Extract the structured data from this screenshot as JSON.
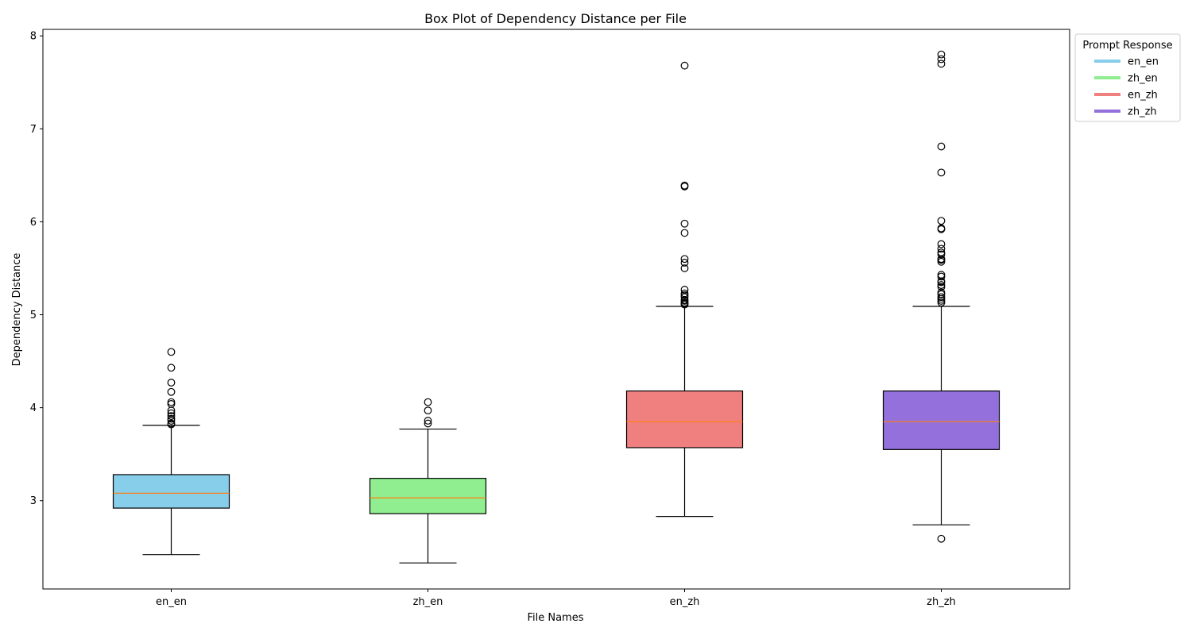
{
  "chart_data": {
    "type": "box",
    "title": "Box Plot of Dependency Distance per File",
    "xlabel": "File Names",
    "ylabel": "Dependency Distance",
    "ylim": [
      2.05,
      8.07
    ],
    "yticks": [
      3,
      4,
      5,
      6,
      7,
      8
    ],
    "grid": false,
    "legend": {
      "title": "Prompt Response",
      "placement": "outside-top-right",
      "entries": [
        "en_en",
        "zh_en",
        "en_zh",
        "zh_zh"
      ]
    },
    "median_color": "#ff7f0e",
    "categories": [
      "en_en",
      "zh_en",
      "en_zh",
      "zh_zh"
    ],
    "boxes": [
      {
        "name": "en_en",
        "color": "#87ceeb",
        "whisker_low": 2.42,
        "q1": 2.92,
        "median": 3.08,
        "q3": 3.28,
        "whisker_high": 3.81,
        "outliers": [
          3.82,
          3.83,
          3.86,
          3.88,
          3.91,
          3.94,
          3.97,
          4.04,
          4.06,
          4.17,
          4.27,
          4.43,
          4.6
        ]
      },
      {
        "name": "zh_en",
        "color": "#90ee90",
        "whisker_low": 2.33,
        "q1": 2.86,
        "median": 3.03,
        "q3": 3.24,
        "whisker_high": 3.77,
        "outliers": [
          3.83,
          3.86,
          3.97,
          4.06
        ]
      },
      {
        "name": "en_zh",
        "color": "#f08080",
        "whisker_low": 2.83,
        "q1": 3.57,
        "median": 3.85,
        "q3": 4.18,
        "whisker_high": 5.09,
        "outliers": [
          5.11,
          5.12,
          5.13,
          5.15,
          5.16,
          5.19,
          5.21,
          5.23,
          5.27,
          5.5,
          5.56,
          5.6,
          5.88,
          5.98,
          6.38,
          6.39,
          7.68
        ]
      },
      {
        "name": "zh_zh",
        "color": "#9370db",
        "whisker_low": 2.74,
        "q1": 3.55,
        "median": 3.85,
        "q3": 4.18,
        "whisker_high": 5.09,
        "outliers": [
          2.59,
          5.13,
          5.15,
          5.17,
          5.19,
          5.22,
          5.24,
          5.3,
          5.32,
          5.35,
          5.36,
          5.41,
          5.43,
          5.57,
          5.59,
          5.6,
          5.65,
          5.67,
          5.71,
          5.76,
          5.92,
          5.93,
          6.01,
          6.53,
          6.81,
          7.7,
          7.75,
          7.8
        ]
      }
    ]
  }
}
